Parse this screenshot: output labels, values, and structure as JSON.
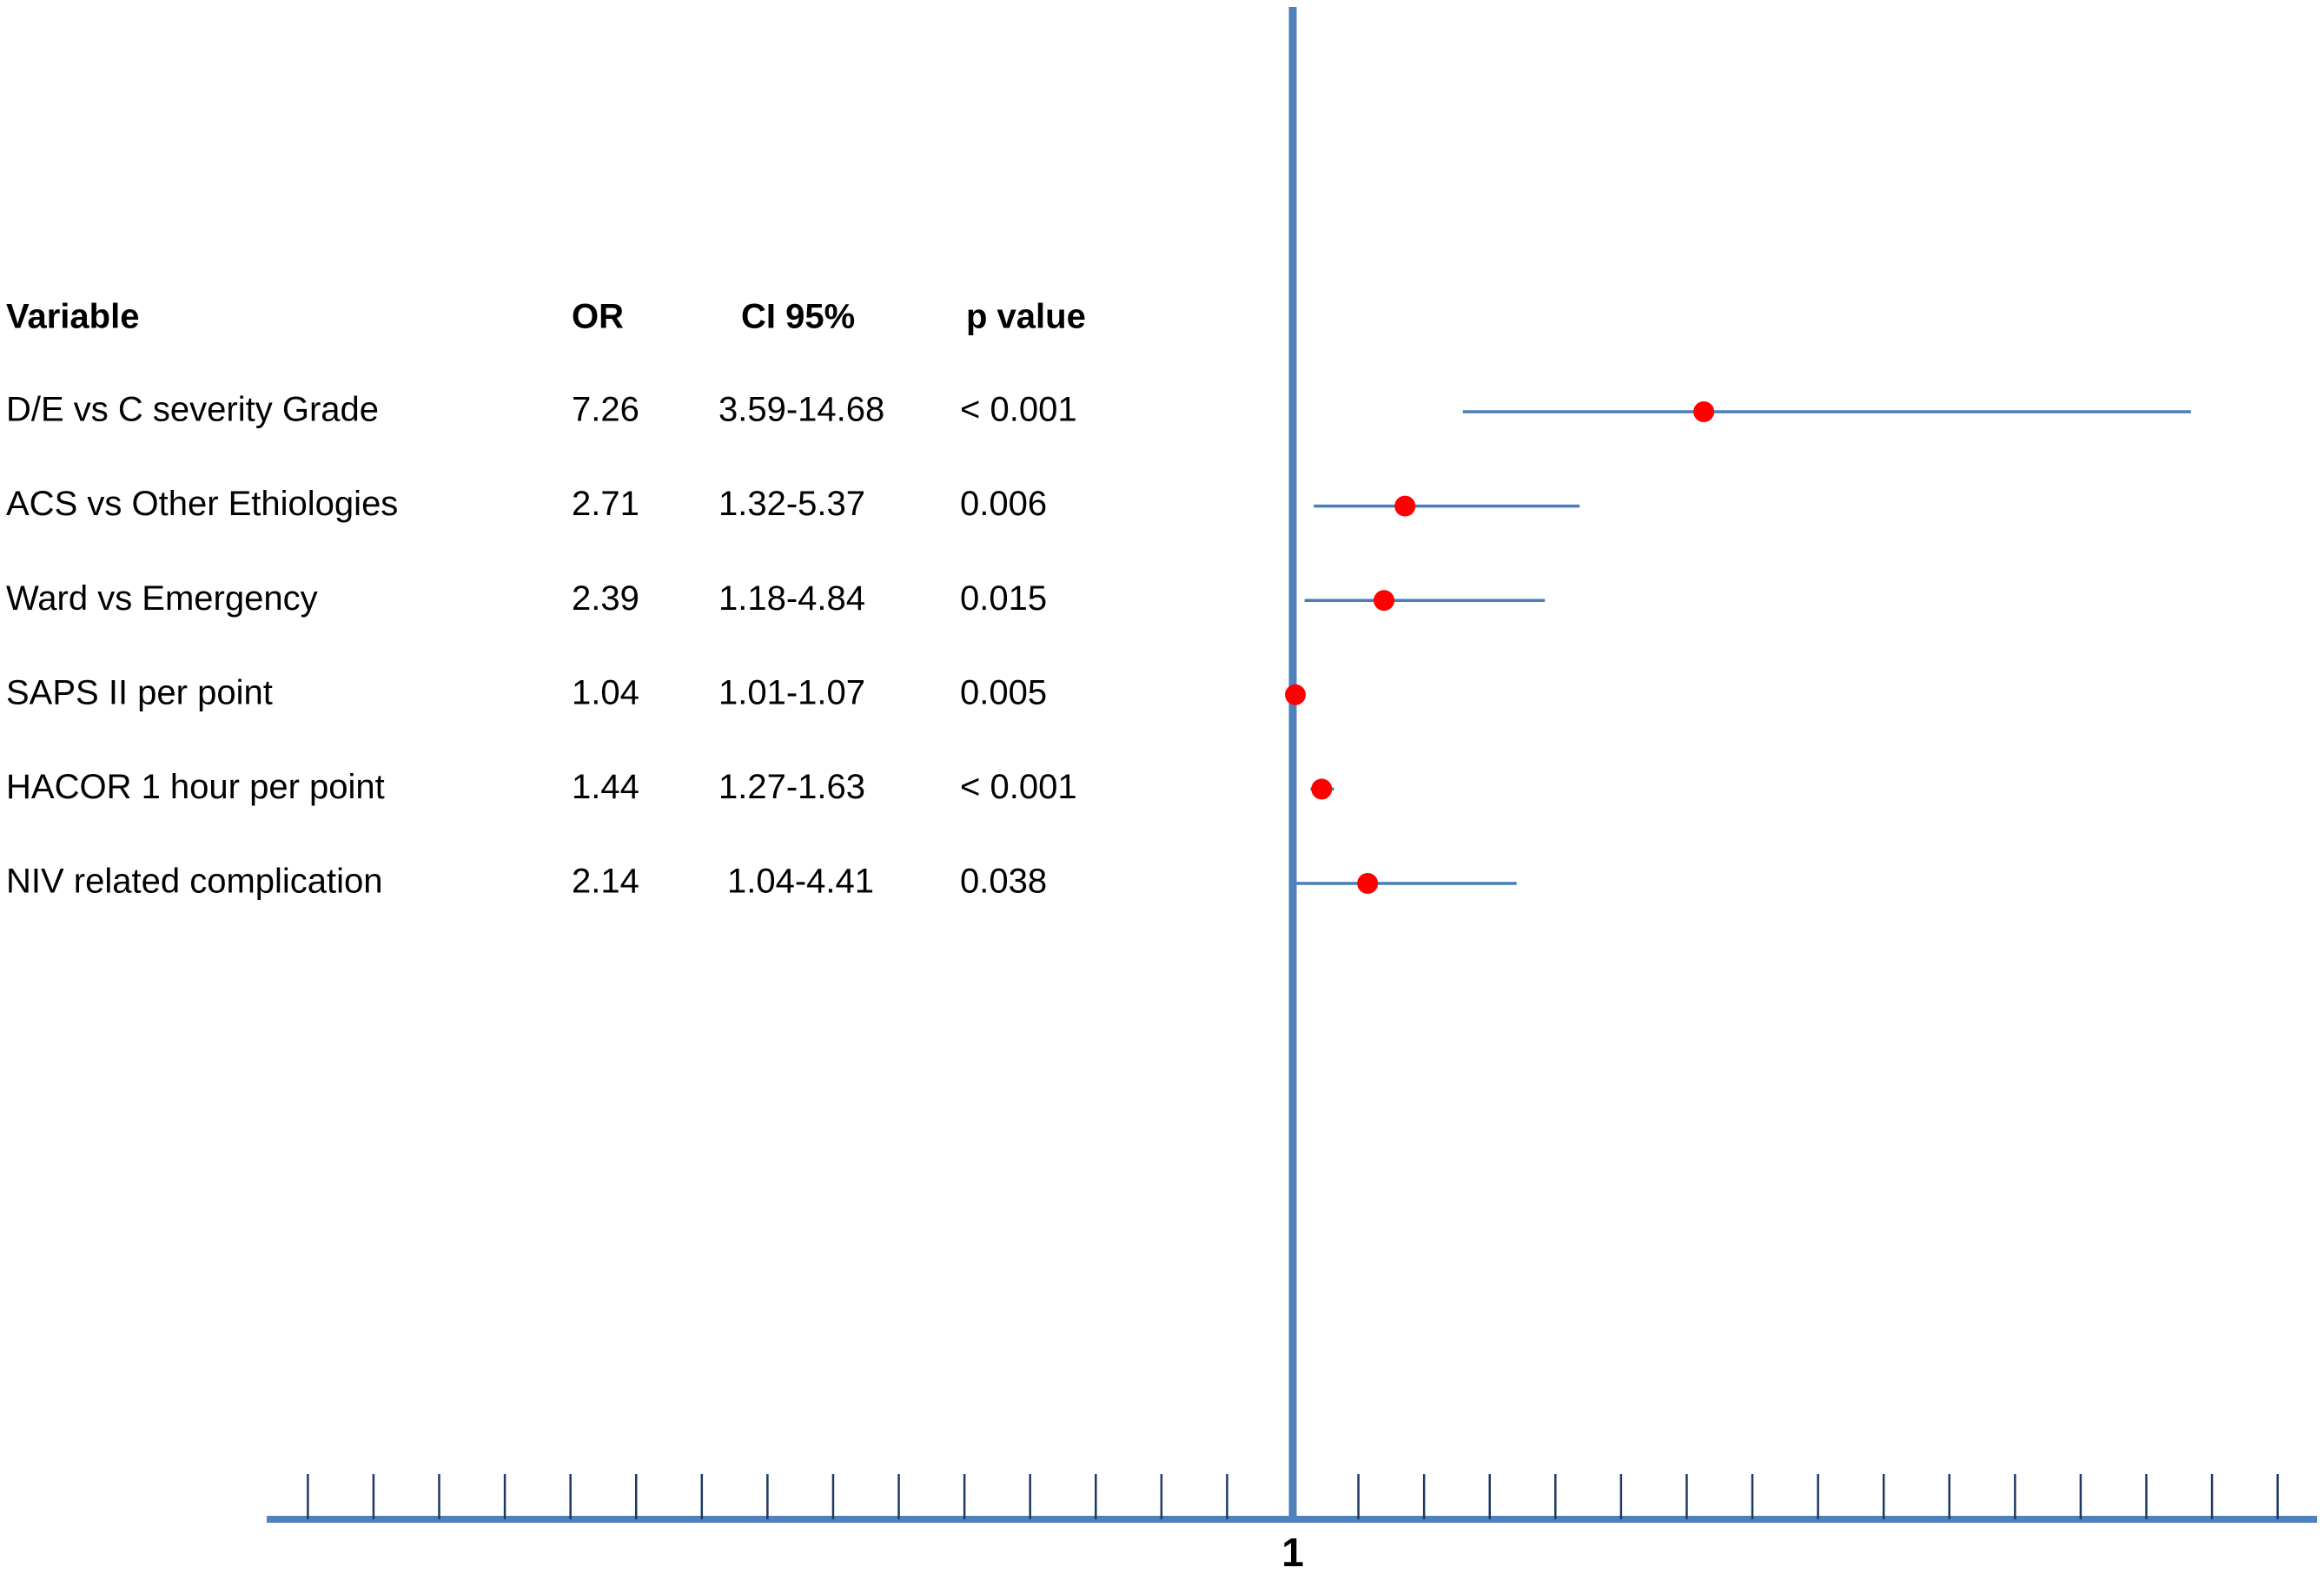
{
  "chart_data": {
    "type": "forest",
    "columns": [
      "Variable",
      "OR",
      "CI 95%",
      "p value"
    ],
    "categories": [
      "D/E vs C severity Grade",
      "ACS vs Other Ethiologies",
      "Ward vs Emergency",
      "SAPS II per point",
      "HACOR  1 hour per point",
      "NIV related complication"
    ],
    "values": [
      7.26,
      2.71,
      2.39,
      1.04,
      1.44,
      2.14
    ],
    "ci_low": [
      3.59,
      1.32,
      1.18,
      1.01,
      1.27,
      1.04
    ],
    "ci_high": [
      14.68,
      5.37,
      4.84,
      1.07,
      1.63,
      4.41
    ],
    "ci_labels": [
      "3.59-14.68",
      "1.32-5.37",
      "1.18-4.84",
      "1.01-1.07",
      "1.27-1.63",
      "1.04-4.41"
    ],
    "p_values": [
      "< 0.001",
      "0.006",
      "0.015",
      "0.005",
      "< 0.001",
      "0.038"
    ],
    "point_color": "#ff0000",
    "line_color": "#4a7ebb",
    "reference_value": 1,
    "xlim": [
      -14.6,
      16.6
    ],
    "xticks": [
      -14,
      -13,
      -12,
      -11,
      -10,
      -9,
      -8,
      -7,
      -6,
      -5,
      -4,
      -3,
      -2,
      -1,
      0,
      1,
      2,
      3,
      4,
      5,
      6,
      7,
      8,
      9,
      10,
      11,
      12,
      13,
      14,
      15,
      16
    ]
  }
}
